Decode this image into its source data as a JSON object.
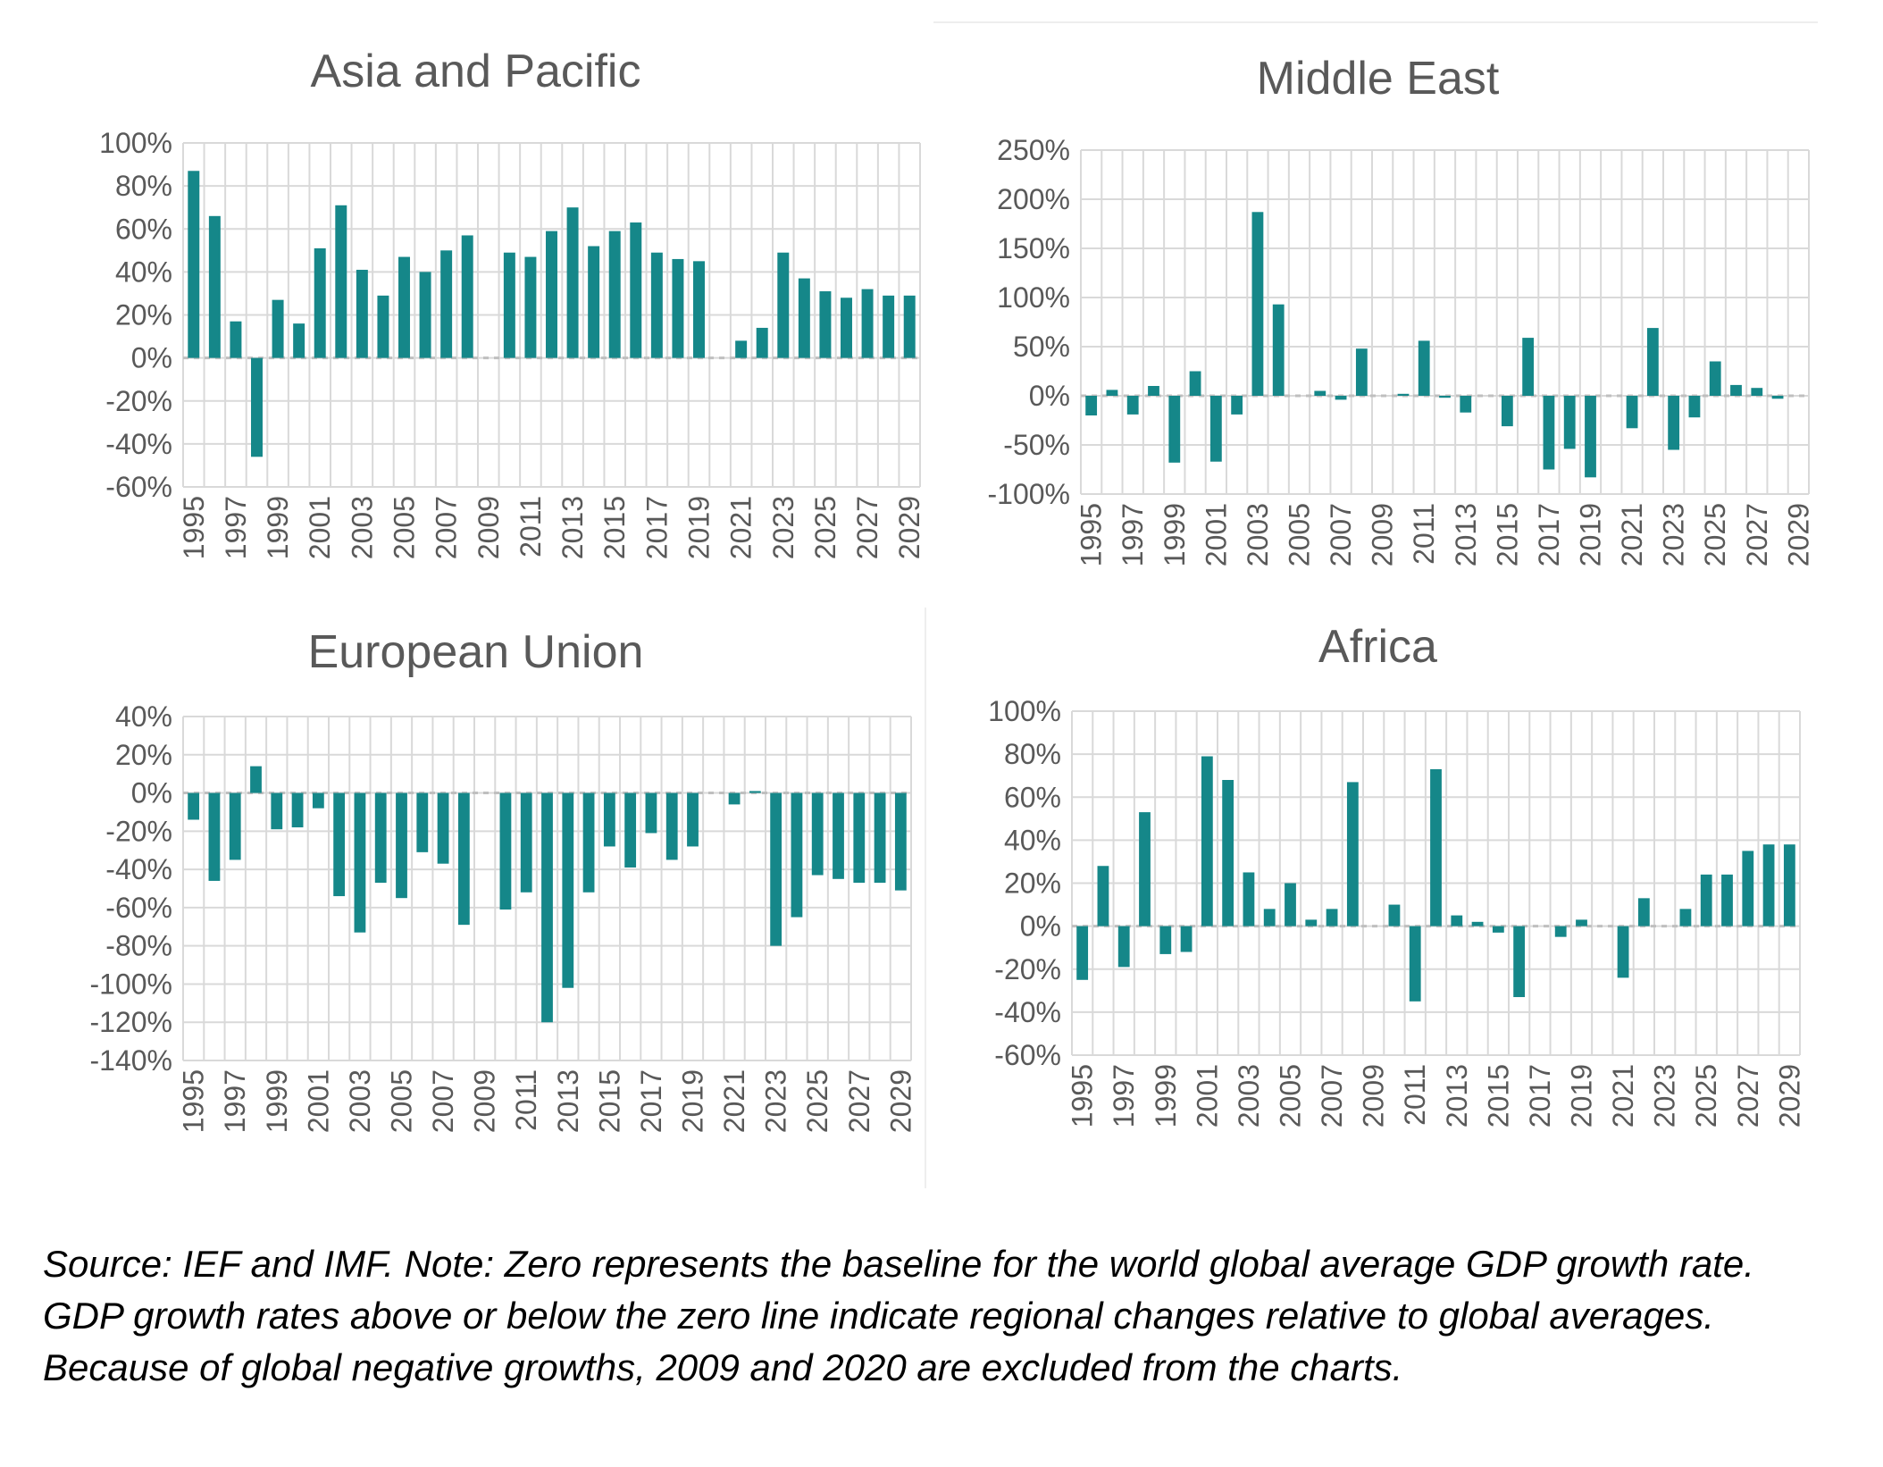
{
  "chart_data": [
    {
      "type": "bar",
      "title": "Asia and Pacific",
      "categories": [
        "1995",
        "1996",
        "1997",
        "1998",
        "1999",
        "2000",
        "2001",
        "2002",
        "2003",
        "2004",
        "2005",
        "2006",
        "2007",
        "2008",
        "2009",
        "2010",
        "2011",
        "2012",
        "2013",
        "2014",
        "2015",
        "2016",
        "2017",
        "2018",
        "2019",
        "2020",
        "2021",
        "2022",
        "2023",
        "2024",
        "2025",
        "2026",
        "2027",
        "2028",
        "2029"
      ],
      "values": [
        87,
        66,
        17,
        -46,
        27,
        16,
        51,
        71,
        41,
        29,
        47,
        40,
        50,
        57,
        null,
        49,
        47,
        59,
        70,
        52,
        59,
        63,
        49,
        46,
        45,
        null,
        8,
        14,
        49,
        37,
        31,
        28,
        32,
        29,
        29
      ],
      "ylim": [
        -60,
        100
      ],
      "yticks": [
        100,
        80,
        60,
        40,
        20,
        0,
        -20,
        -40,
        -60
      ],
      "ytick_labels": [
        "100%",
        "80%",
        "60%",
        "40%",
        "20%",
        "0%",
        "-20%",
        "-40%",
        "-60%"
      ],
      "xtick_labels": [
        "1995",
        "1997",
        "1999",
        "2001",
        "2003",
        "2005",
        "2007",
        "2009",
        "2011",
        "2013",
        "2015",
        "2017",
        "2019",
        "2021",
        "2023",
        "2025",
        "2027",
        "2029"
      ],
      "grid": true,
      "bar_color": "#158789"
    },
    {
      "type": "bar",
      "title": "Middle East",
      "categories": [
        "1995",
        "1996",
        "1997",
        "1998",
        "1999",
        "2000",
        "2001",
        "2002",
        "2003",
        "2004",
        "2005",
        "2006",
        "2007",
        "2008",
        "2009",
        "2010",
        "2011",
        "2012",
        "2013",
        "2014",
        "2015",
        "2016",
        "2017",
        "2018",
        "2019",
        "2020",
        "2021",
        "2022",
        "2023",
        "2024",
        "2025",
        "2026",
        "2027",
        "2028",
        "2029"
      ],
      "values": [
        -20,
        6,
        -19,
        10,
        -68,
        25,
        -67,
        -19,
        187,
        93,
        0,
        5,
        -4,
        48,
        null,
        2,
        56,
        -2,
        -17,
        0,
        -31,
        59,
        -75,
        -54,
        -83,
        null,
        -33,
        69,
        -55,
        -22,
        35,
        11,
        8,
        -3,
        0
      ],
      "ylim": [
        -100,
        250
      ],
      "yticks": [
        250,
        200,
        150,
        100,
        50,
        0,
        -50,
        -100
      ],
      "ytick_labels": [
        "250%",
        "200%",
        "150%",
        "100%",
        "50%",
        "0%",
        "-50%",
        "-100%"
      ],
      "xtick_labels": [
        "1995",
        "1997",
        "1999",
        "2001",
        "2003",
        "2005",
        "2007",
        "2009",
        "2011",
        "2013",
        "2015",
        "2017",
        "2019",
        "2021",
        "2023",
        "2025",
        "2027",
        "2029"
      ],
      "grid": true,
      "bar_color": "#158789"
    },
    {
      "type": "bar",
      "title": "European Union",
      "categories": [
        "1995",
        "1996",
        "1997",
        "1998",
        "1999",
        "2000",
        "2001",
        "2002",
        "2003",
        "2004",
        "2005",
        "2006",
        "2007",
        "2008",
        "2009",
        "2010",
        "2011",
        "2012",
        "2013",
        "2014",
        "2015",
        "2016",
        "2017",
        "2018",
        "2019",
        "2020",
        "2021",
        "2022",
        "2023",
        "2024",
        "2025",
        "2026",
        "2027",
        "2028",
        "2029"
      ],
      "values": [
        -14,
        -46,
        -35,
        14,
        -19,
        -18,
        -8,
        -54,
        -73,
        -47,
        -55,
        -31,
        -37,
        -69,
        null,
        -61,
        -52,
        -120,
        -102,
        -52,
        -28,
        -39,
        -21,
        -35,
        -28,
        null,
        -6,
        1,
        -80,
        -65,
        -43,
        -45,
        -47,
        -47,
        -51
      ],
      "ylim": [
        -140,
        40
      ],
      "yticks": [
        40,
        20,
        0,
        -20,
        -40,
        -60,
        -80,
        -100,
        -120,
        -140
      ],
      "ytick_labels": [
        "40%",
        "20%",
        "0%",
        "-20%",
        "-40%",
        "-60%",
        "-80%",
        "-100%",
        "-120%",
        "-140%"
      ],
      "xtick_labels": [
        "1995",
        "1997",
        "1999",
        "2001",
        "2003",
        "2005",
        "2007",
        "2009",
        "2011",
        "2013",
        "2015",
        "2017",
        "2019",
        "2021",
        "2023",
        "2025",
        "2027",
        "2029"
      ],
      "grid": true,
      "bar_color": "#158789"
    },
    {
      "type": "bar",
      "title": "Africa",
      "categories": [
        "1995",
        "1996",
        "1997",
        "1998",
        "1999",
        "2000",
        "2001",
        "2002",
        "2003",
        "2004",
        "2005",
        "2006",
        "2007",
        "2008",
        "2009",
        "2010",
        "2011",
        "2012",
        "2013",
        "2014",
        "2015",
        "2016",
        "2017",
        "2018",
        "2019",
        "2020",
        "2021",
        "2022",
        "2023",
        "2024",
        "2025",
        "2026",
        "2027",
        "2028",
        "2029"
      ],
      "values": [
        -25,
        28,
        -19,
        53,
        -13,
        -12,
        79,
        68,
        25,
        8,
        20,
        3,
        8,
        67,
        null,
        10,
        -35,
        73,
        5,
        2,
        -3,
        -33,
        0,
        -5,
        3,
        null,
        -24,
        13,
        0,
        8,
        24,
        24,
        35,
        38,
        38
      ],
      "ylim": [
        -60,
        100
      ],
      "yticks": [
        100,
        80,
        60,
        40,
        20,
        0,
        -20,
        -40,
        -60
      ],
      "ytick_labels": [
        "100%",
        "80%",
        "60%",
        "40%",
        "20%",
        "0%",
        "-20%",
        "-40%",
        "-60%"
      ],
      "xtick_labels": [
        "1995",
        "1997",
        "1999",
        "2001",
        "2003",
        "2005",
        "2007",
        "2009",
        "2011",
        "2013",
        "2015",
        "2017",
        "2019",
        "2021",
        "2023",
        "2025",
        "2027",
        "2029"
      ],
      "grid": true,
      "bar_color": "#158789"
    }
  ],
  "note": {
    "text": "Source: IEF and IMF. Note: Zero represents the baseline for the world global average GDP growth rate. GDP growth rates above or below the zero line indicate regional changes relative to global averages. Because of global negative growths, 2009 and 2020 are excluded from the charts."
  }
}
